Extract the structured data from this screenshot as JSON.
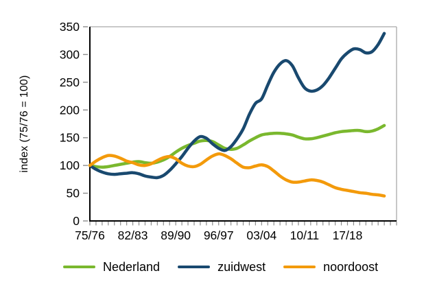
{
  "figure": {
    "background": "#ffffff",
    "text_color": "#000000"
  },
  "chart_data": {
    "type": "line",
    "title": "",
    "xlabel": "",
    "ylabel": "index (75/76 = 100)",
    "ylim": [
      0,
      350
    ],
    "ytick_step": 50,
    "ytick_labels": [
      "0",
      "50",
      "100",
      "150",
      "200",
      "250",
      "300",
      "350"
    ],
    "grid": "top-line-only",
    "grid_color": "#a9a9a9",
    "tick_color": "#8c8c8c",
    "axis_color": "#000000",
    "legend_position": "bottom",
    "x_tick_labels": [
      "75/76",
      "82/83",
      "89/90",
      "96/97",
      "03/04",
      "10/11",
      "17/18"
    ],
    "x_tick_indices": [
      0,
      7,
      14,
      21,
      28,
      35,
      42
    ],
    "x": [
      "75/76",
      "76/77",
      "77/78",
      "78/79",
      "79/80",
      "80/81",
      "81/82",
      "82/83",
      "83/84",
      "84/85",
      "85/86",
      "86/87",
      "87/88",
      "88/89",
      "89/90",
      "90/91",
      "91/92",
      "92/93",
      "93/94",
      "94/95",
      "95/96",
      "96/97",
      "97/98",
      "98/99",
      "99/00",
      "00/01",
      "01/02",
      "02/03",
      "03/04",
      "04/05",
      "05/06",
      "06/07",
      "07/08",
      "08/09",
      "09/10",
      "10/11",
      "11/12",
      "12/13",
      "13/14",
      "14/15",
      "15/16",
      "16/17",
      "17/18",
      "18/19",
      "19/20",
      "20/21",
      "21/22",
      "22/23",
      "23/24"
    ],
    "series": [
      {
        "name": "Nederland",
        "color": "#7ab82e",
        "values": [
          100,
          98,
          97,
          98,
          100,
          102,
          104,
          106,
          107,
          105,
          104,
          106,
          110,
          116,
          124,
          131,
          136,
          140,
          144,
          145,
          143,
          137,
          131,
          129,
          131,
          137,
          144,
          150,
          155,
          157,
          158,
          158,
          157,
          155,
          151,
          148,
          148,
          150,
          153,
          156,
          159,
          161,
          162,
          163,
          163,
          161,
          162,
          166,
          172
        ]
      },
      {
        "name": "zuidwest",
        "color": "#19496f",
        "values": [
          100,
          93,
          88,
          85,
          84,
          85,
          86,
          87,
          85,
          81,
          79,
          78,
          82,
          91,
          103,
          116,
          131,
          144,
          152,
          149,
          139,
          131,
          127,
          134,
          148,
          166,
          192,
          212,
          220,
          245,
          268,
          283,
          289,
          280,
          258,
          240,
          234,
          236,
          244,
          258,
          275,
          292,
          303,
          310,
          309,
          303,
          305,
          318,
          338
        ]
      },
      {
        "name": "noordoost",
        "color": "#f39a0b",
        "values": [
          100,
          108,
          114,
          118,
          117,
          113,
          108,
          105,
          101,
          100,
          103,
          109,
          114,
          116,
          112,
          104,
          99,
          98,
          102,
          110,
          117,
          121,
          118,
          112,
          104,
          97,
          96,
          99,
          101,
          98,
          90,
          81,
          74,
          70,
          70,
          72,
          74,
          73,
          70,
          65,
          60,
          57,
          55,
          53,
          51,
          50,
          48,
          47,
          45
        ]
      }
    ]
  }
}
